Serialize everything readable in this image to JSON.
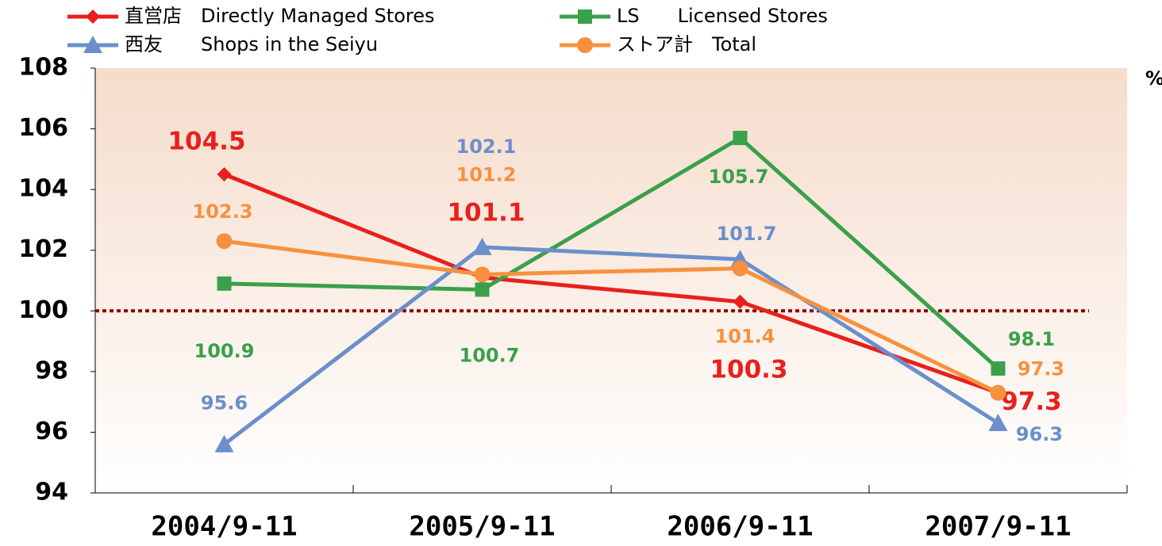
{
  "chart_data": {
    "type": "line",
    "categories": [
      "2004/9-11",
      "2005/9-11",
      "2006/9-11",
      "2007/9-11"
    ],
    "series": [
      {
        "name": "直営店　Directly Managed Stores",
        "color": "#e8201c",
        "marker": "diamond",
        "values": [
          104.5,
          101.1,
          100.3,
          97.3
        ]
      },
      {
        "name": "LS　　Licensed Stores",
        "color": "#3aa04a",
        "marker": "square",
        "values": [
          100.9,
          100.7,
          105.7,
          98.1
        ]
      },
      {
        "name": "西友　　Shops in the Seiyu",
        "color": "#6b8fcb",
        "marker": "triangle",
        "values": [
          95.6,
          102.1,
          101.7,
          96.3
        ]
      },
      {
        "name": "ストア計　Total",
        "color": "#f7913e",
        "marker": "circle",
        "values": [
          102.3,
          101.2,
          101.4,
          97.3
        ]
      }
    ],
    "ylim": [
      94,
      108
    ],
    "yticks": [
      94,
      96,
      98,
      100,
      102,
      104,
      106,
      108
    ],
    "reference_line": 100,
    "unit_label": "%",
    "grid": false
  }
}
